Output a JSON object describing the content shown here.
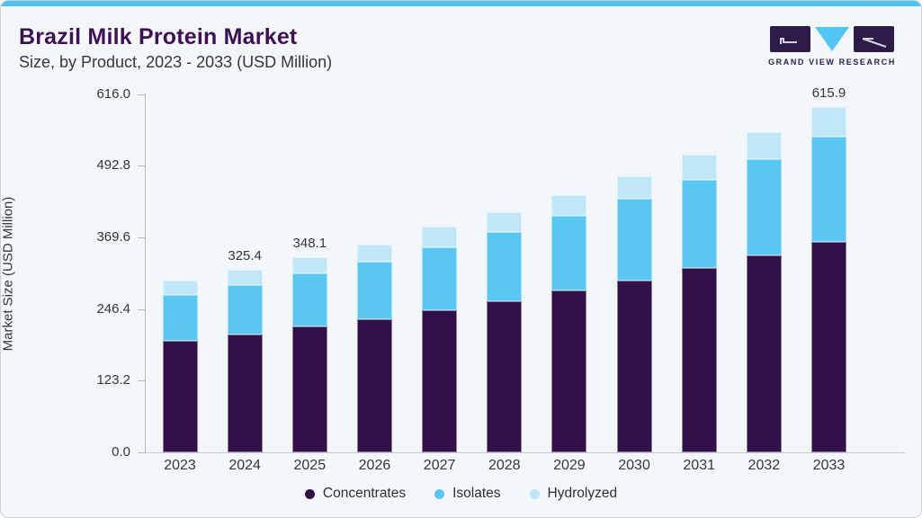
{
  "header": {
    "title": "Brazil Milk Protein Market",
    "subtitle": "Size, by Product, 2023 - 2033 (USD Million)"
  },
  "logo": {
    "name": "Grand View Research",
    "text": "GRAND VIEW RESEARCH",
    "purple": "#2d1a47",
    "triangle_blue": "#53c6f3"
  },
  "chart_data": {
    "type": "bar",
    "stacked": true,
    "title": "Brazil Milk Protein Market Size, by Product, 2023 - 2033 (USD Million)",
    "xlabel": "",
    "ylabel": "Market Size (USD Million)",
    "ylim": [
      0,
      616
    ],
    "ytick_labels": [
      "616.0",
      "492.8",
      "369.6",
      "246.4",
      "123.2",
      "0.0"
    ],
    "grid": false,
    "legend_position": "bottom",
    "categories": [
      "2023",
      "2024",
      "2025",
      "2026",
      "2027",
      "2028",
      "2029",
      "2030",
      "2031",
      "2032",
      "2033"
    ],
    "series": [
      {
        "name": "Concentrates",
        "color": "#32114a",
        "values": [
          198.6,
          209.8,
          224.2,
          236.8,
          253.1,
          269.2,
          288.4,
          306.9,
          328.6,
          351.1,
          375.1
        ]
      },
      {
        "name": "Isolates",
        "color": "#5ac6f2",
        "values": [
          81.8,
          88.3,
          94.8,
          103.0,
          113.5,
          123.6,
          133.3,
          145.3,
          157.3,
          171.8,
          187.9
        ]
      },
      {
        "name": "Hydrolyzed",
        "color": "#bfe6f9",
        "values": [
          25.7,
          27.3,
          29.1,
          30.5,
          35.8,
          35.3,
          36.9,
          40.1,
          44.9,
          48.1,
          52.9
        ]
      }
    ],
    "totals": [
      306.1,
      325.4,
      348.1,
      370.3,
      402.4,
      428.1,
      458.6,
      492.3,
      530.8,
      571.0,
      615.9
    ],
    "bar_labels": [
      "",
      "325.4",
      "348.1",
      "",
      "",
      "",
      "",
      "",
      "",
      "",
      "615.9"
    ]
  },
  "colors": {
    "card_background": "#f3f7fa",
    "top_accent": "#4fc3f0",
    "title_text": "#3e1154",
    "axis_line": "#b4bbc7",
    "label_text": "#34353e"
  }
}
